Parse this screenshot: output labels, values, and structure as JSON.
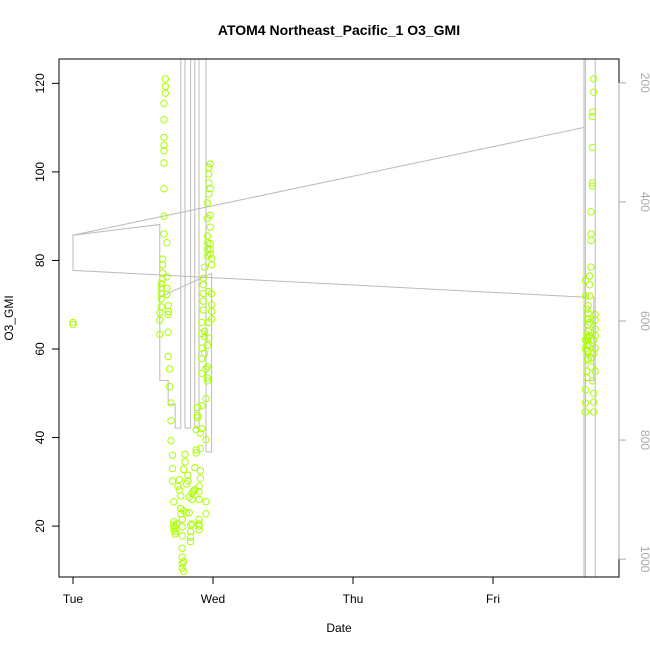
{
  "chart_data": {
    "type": "scatter",
    "title": "ATOM4 Northeast_Pacific_1 O3_GMI",
    "xlabel": "Date",
    "ylabel": "O3_GMI",
    "x_ticks": [
      "Tue",
      "Wed",
      "Thu",
      "Fri"
    ],
    "x_tick_values": [
      0,
      1,
      2,
      3
    ],
    "y_ticks": [
      "20",
      "40",
      "60",
      "80",
      "100",
      "120"
    ],
    "y_tick_values": [
      20,
      40,
      60,
      80,
      100,
      120
    ],
    "y2_ticks": [
      "200",
      "400",
      "600",
      "800",
      "1000"
    ],
    "y2_tick_values": [
      200,
      400,
      600,
      800,
      1000
    ],
    "xlim": [
      -0.1,
      3.9
    ],
    "ylim": [
      8.5,
      125.5
    ],
    "y2lim": [
      1030,
      160
    ],
    "y2_reversed": true,
    "grid": false,
    "series": [
      {
        "type": "scatter",
        "marker": "open-circle",
        "color": "#aaff00",
        "points": [
          [
            0.0,
            65.5
          ],
          [
            0.0,
            66.0
          ],
          [
            0.62,
            63.3
          ],
          [
            0.62,
            66.5
          ],
          [
            0.62,
            68.2
          ],
          [
            0.63,
            69.5
          ],
          [
            0.63,
            71.3
          ],
          [
            0.63,
            72.5
          ],
          [
            0.63,
            73.8
          ],
          [
            0.63,
            74.8
          ],
          [
            0.64,
            75.8
          ],
          [
            0.64,
            77.2
          ],
          [
            0.64,
            79.0
          ],
          [
            0.64,
            80.3
          ],
          [
            0.65,
            86.0
          ],
          [
            0.65,
            90.0
          ],
          [
            0.65,
            96.2
          ],
          [
            0.65,
            102.0
          ],
          [
            0.65,
            104.8
          ],
          [
            0.65,
            106.0
          ],
          [
            0.65,
            107.8
          ],
          [
            0.65,
            111.8
          ],
          [
            0.65,
            115.5
          ],
          [
            0.66,
            117.8
          ],
          [
            0.66,
            119.3
          ],
          [
            0.66,
            121.0
          ],
          [
            0.67,
            84.0
          ],
          [
            0.67,
            76.3
          ],
          [
            0.67,
            73.7
          ],
          [
            0.67,
            72.3
          ],
          [
            0.68,
            69.8
          ],
          [
            0.68,
            68.5
          ],
          [
            0.68,
            67.8
          ],
          [
            0.68,
            63.8
          ],
          [
            0.68,
            58.3
          ],
          [
            0.69,
            55.5
          ],
          [
            0.69,
            51.5
          ],
          [
            0.7,
            47.8
          ],
          [
            0.7,
            43.8
          ],
          [
            0.7,
            39.3
          ],
          [
            0.71,
            36.0
          ],
          [
            0.71,
            33.0
          ],
          [
            0.71,
            30.2
          ],
          [
            0.72,
            25.5
          ],
          [
            0.72,
            21.0
          ],
          [
            0.72,
            20.2
          ],
          [
            0.72,
            19.2
          ],
          [
            0.73,
            18.2
          ],
          [
            0.73,
            18.8
          ],
          [
            0.73,
            19.8
          ],
          [
            0.74,
            20.5
          ],
          [
            0.75,
            29.0
          ],
          [
            0.76,
            30.5
          ],
          [
            0.76,
            28.2
          ],
          [
            0.77,
            26.8
          ],
          [
            0.77,
            24.0
          ],
          [
            0.77,
            22.8
          ],
          [
            0.78,
            21.5
          ],
          [
            0.78,
            19.8
          ],
          [
            0.78,
            17.8
          ],
          [
            0.78,
            15.0
          ],
          [
            0.78,
            13.0
          ],
          [
            0.78,
            11.5
          ],
          [
            0.78,
            10.5
          ],
          [
            0.79,
            9.8
          ],
          [
            0.79,
            12.0
          ],
          [
            0.79,
            23.5
          ],
          [
            0.79,
            32.8
          ],
          [
            0.8,
            34.5
          ],
          [
            0.8,
            36.2
          ],
          [
            0.81,
            23.0
          ],
          [
            0.81,
            29.5
          ],
          [
            0.82,
            30.2
          ],
          [
            0.82,
            31.5
          ],
          [
            0.83,
            26.5
          ],
          [
            0.83,
            23.0
          ],
          [
            0.84,
            20.2
          ],
          [
            0.84,
            18.8
          ],
          [
            0.84,
            17.5
          ],
          [
            0.84,
            16.5
          ],
          [
            0.85,
            20.5
          ],
          [
            0.85,
            26.0
          ],
          [
            0.85,
            27.5
          ],
          [
            0.86,
            27.9
          ],
          [
            0.87,
            28.2
          ],
          [
            0.87,
            33.2
          ],
          [
            0.88,
            36.5
          ],
          [
            0.88,
            37.2
          ],
          [
            0.88,
            41.8
          ],
          [
            0.89,
            45.0
          ],
          [
            0.89,
            46.8
          ],
          [
            0.89,
            44.5
          ],
          [
            0.9,
            20.0
          ],
          [
            0.9,
            19.2
          ],
          [
            0.9,
            20.5
          ],
          [
            0.9,
            21.5
          ],
          [
            0.9,
            26.0
          ],
          [
            0.9,
            27.8
          ],
          [
            0.9,
            29.0
          ],
          [
            0.91,
            30.8
          ],
          [
            0.91,
            32.5
          ],
          [
            0.91,
            37.5
          ],
          [
            0.91,
            41.0
          ],
          [
            0.92,
            42.0
          ],
          [
            0.92,
            47.2
          ],
          [
            0.92,
            54.5
          ],
          [
            0.92,
            57.8
          ],
          [
            0.92,
            60.2
          ],
          [
            0.92,
            63.5
          ],
          [
            0.92,
            66.0
          ],
          [
            0.93,
            68.8
          ],
          [
            0.93,
            70.8
          ],
          [
            0.93,
            72.5
          ],
          [
            0.93,
            74.5
          ],
          [
            0.93,
            76.0
          ],
          [
            0.94,
            78.5
          ],
          [
            0.94,
            64.0
          ],
          [
            0.94,
            62.8
          ],
          [
            0.94,
            59.0
          ],
          [
            0.95,
            55.5
          ],
          [
            0.95,
            48.8
          ],
          [
            0.95,
            39.5
          ],
          [
            0.95,
            25.5
          ],
          [
            0.95,
            22.8
          ],
          [
            0.96,
            81.0
          ],
          [
            0.96,
            82.5
          ],
          [
            0.96,
            84.0
          ],
          [
            0.96,
            85.5
          ],
          [
            0.96,
            89.5
          ],
          [
            0.96,
            93.0
          ],
          [
            0.97,
            95.0
          ],
          [
            0.97,
            97.5
          ],
          [
            0.97,
            99.5
          ],
          [
            0.97,
            101.0
          ],
          [
            0.98,
            101.8
          ],
          [
            0.98,
            96.2
          ],
          [
            0.98,
            90.2
          ],
          [
            0.98,
            87.5
          ],
          [
            0.98,
            83.8
          ],
          [
            0.98,
            82.5
          ],
          [
            0.98,
            81.5
          ],
          [
            0.99,
            80.5
          ],
          [
            0.99,
            79.0
          ],
          [
            0.99,
            70.0
          ],
          [
            0.99,
            68.5
          ],
          [
            0.99,
            66.8
          ],
          [
            0.99,
            72.5
          ],
          [
            0.96,
            60.8
          ],
          [
            0.96,
            56.0
          ],
          [
            0.96,
            53.5
          ],
          [
            0.96,
            52.8
          ],
          [
            0.97,
            62.5
          ],
          [
            0.97,
            66.0
          ],
          [
            0.97,
            73.0
          ],
          [
            3.66,
            45.8
          ],
          [
            3.66,
            47.8
          ],
          [
            3.66,
            50.8
          ],
          [
            3.67,
            53.5
          ],
          [
            3.67,
            55.0
          ],
          [
            3.67,
            57.5
          ],
          [
            3.67,
            59.5
          ],
          [
            3.67,
            60.8
          ],
          [
            3.67,
            61.8
          ],
          [
            3.67,
            62.5
          ],
          [
            3.67,
            63.2
          ],
          [
            3.68,
            64.0
          ],
          [
            3.68,
            65.5
          ],
          [
            3.68,
            66.8
          ],
          [
            3.68,
            68.0
          ],
          [
            3.68,
            69.8
          ],
          [
            3.69,
            72.0
          ],
          [
            3.69,
            74.5
          ],
          [
            3.69,
            76.5
          ],
          [
            3.7,
            78.5
          ],
          [
            3.7,
            84.5
          ],
          [
            3.7,
            86.0
          ],
          [
            3.7,
            91.0
          ],
          [
            3.71,
            96.8
          ],
          [
            3.71,
            97.5
          ],
          [
            3.71,
            105.5
          ],
          [
            3.71,
            112.5
          ],
          [
            3.71,
            113.5
          ],
          [
            3.72,
            118.0
          ],
          [
            3.72,
            121.0
          ],
          [
            3.72,
            59.0
          ],
          [
            3.72,
            62.0
          ],
          [
            3.73,
            63.0
          ],
          [
            3.73,
            64.5
          ],
          [
            3.73,
            60.2
          ],
          [
            3.73,
            55.0
          ],
          [
            3.72,
            50.0
          ],
          [
            3.72,
            48.0
          ],
          [
            3.72,
            45.8
          ],
          [
            3.71,
            52.8
          ],
          [
            3.69,
            66.0
          ],
          [
            3.69,
            63.0
          ],
          [
            3.7,
            58.0
          ],
          [
            3.7,
            56.0
          ],
          [
            3.68,
            57.8
          ],
          [
            3.68,
            59.5
          ],
          [
            3.68,
            61.0
          ],
          [
            3.68,
            62.8
          ],
          [
            3.67,
            66.8
          ],
          [
            3.67,
            69.0
          ],
          [
            3.66,
            62.0
          ],
          [
            3.66,
            60.0
          ],
          [
            3.66,
            72.0
          ],
          [
            3.66,
            75.5
          ],
          [
            3.73,
            66.5
          ],
          [
            3.73,
            67.8
          ]
        ]
      },
      {
        "type": "line",
        "color": "#bbbbbb",
        "axis": "right",
        "points": [
          [
            0.0,
            515
          ],
          [
            0.0,
            456
          ],
          [
            3.65,
            275
          ],
          [
            3.65,
            160
          ],
          [
            3.65,
            1030
          ],
          [
            3.65,
            700
          ],
          [
            3.66,
            700
          ],
          [
            3.66,
            160
          ],
          [
            3.66,
            1030
          ],
          [
            3.73,
            1030
          ],
          [
            3.73,
            160
          ],
          [
            3.73,
            560
          ],
          [
            3.72,
            560
          ],
          [
            3.72,
            700
          ],
          [
            3.67,
            700
          ],
          [
            3.67,
            700
          ],
          [
            3.66,
            700
          ],
          [
            3.66,
            560
          ],
          [
            0.0,
            515
          ],
          [
            0.0,
            456
          ],
          [
            0.62,
            438
          ],
          [
            0.62,
            700
          ],
          [
            0.68,
            700
          ],
          [
            0.68,
            740
          ],
          [
            0.73,
            740
          ],
          [
            0.73,
            780
          ],
          [
            0.77,
            780
          ],
          [
            0.77,
            160
          ],
          [
            0.8,
            160
          ],
          [
            0.8,
            780
          ],
          [
            0.84,
            780
          ],
          [
            0.84,
            160
          ],
          [
            0.87,
            160
          ],
          [
            0.87,
            780
          ],
          [
            0.9,
            780
          ],
          [
            0.9,
            160
          ],
          [
            0.95,
            160
          ],
          [
            0.95,
            820
          ],
          [
            0.99,
            820
          ],
          [
            0.99,
            520
          ],
          [
            0.62,
            560
          ]
        ]
      }
    ]
  }
}
